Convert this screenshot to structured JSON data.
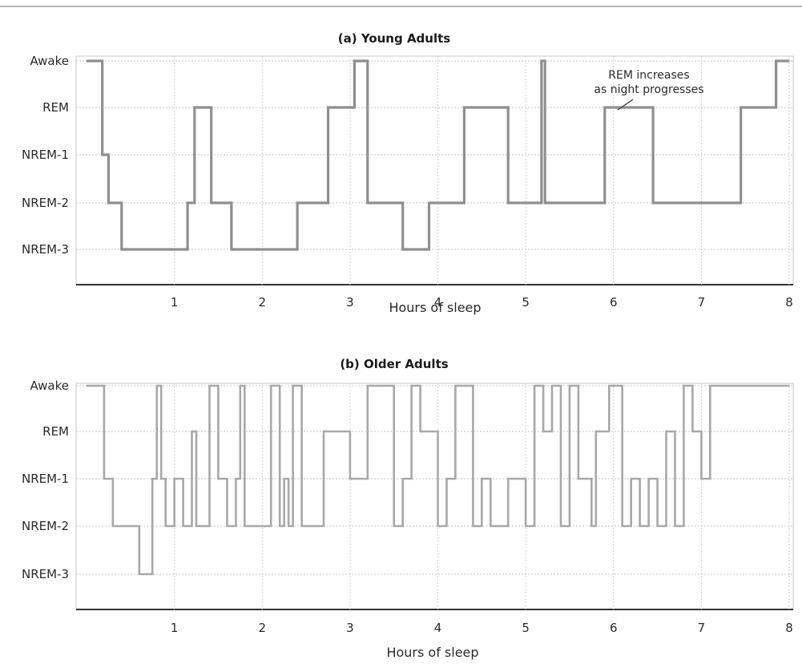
{
  "chart_data": [
    {
      "type": "line",
      "step": true,
      "title": "(a) Young Adults",
      "xlabel": "Hours of sleep",
      "ylabel": "",
      "xlim": [
        0,
        8
      ],
      "x_ticks": [
        1,
        2,
        3,
        4,
        5,
        6,
        7,
        8
      ],
      "y_categories": [
        "NREM-3",
        "NREM-2",
        "NREM-1",
        "REM",
        "Awake"
      ],
      "grid": true,
      "color": "#8f8f8f",
      "annotation": {
        "lines": [
          "REM increases",
          "as night progresses"
        ],
        "points_to": {
          "x": 6.15,
          "stage": "REM"
        }
      },
      "series": [
        {
          "x": [
            0,
            0.18,
            0.25,
            0.4,
            1.15,
            1.23,
            1.42,
            1.6,
            1.65,
            2.1,
            2.4,
            2.75,
            3.05,
            3.1,
            3.2,
            3.4,
            3.6,
            3.9,
            4.05,
            4.3,
            4.8,
            5.18,
            5.22,
            5.26,
            5.9,
            6.45,
            7.45,
            7.7,
            7.85,
            8.0
          ],
          "stage": [
            "Awake",
            "NREM-1",
            "NREM-2",
            "NREM-3",
            "NREM-2",
            "REM",
            "NREM-2",
            "NREM-2",
            "NREM-3",
            "NREM-3",
            "NREM-2",
            "REM",
            "Awake",
            "Awake",
            "NREM-2",
            "NREM-2",
            "NREM-3",
            "NREM-2",
            "NREM-2",
            "REM",
            "NREM-2",
            "Awake",
            "NREM-2",
            "NREM-2",
            "REM",
            "NREM-2",
            "REM",
            "REM",
            "Awake",
            "Awake"
          ]
        }
      ]
    },
    {
      "type": "line",
      "step": true,
      "title": "(b) Older Adults",
      "xlabel": "Hours of sleep",
      "ylabel": "",
      "xlim": [
        0,
        8
      ],
      "x_ticks": [
        1,
        2,
        3,
        4,
        5,
        6,
        7,
        8
      ],
      "y_categories": [
        "NREM-3",
        "NREM-2",
        "NREM-1",
        "REM",
        "Awake"
      ],
      "grid": true,
      "color": "#a8a8a8",
      "series": [
        {
          "x": [
            0,
            0.2,
            0.3,
            0.6,
            0.75,
            0.8,
            0.85,
            0.9,
            1.0,
            1.1,
            1.2,
            1.25,
            1.4,
            1.5,
            1.6,
            1.7,
            1.75,
            1.8,
            2.1,
            2.2,
            2.25,
            2.3,
            2.35,
            2.45,
            2.7,
            2.9,
            3.0,
            3.2,
            3.5,
            3.6,
            3.7,
            3.8,
            4.0,
            4.1,
            4.2,
            4.4,
            4.5,
            4.6,
            4.8,
            5.0,
            5.1,
            5.2,
            5.3,
            5.4,
            5.5,
            5.6,
            5.75,
            5.8,
            5.95,
            6.1,
            6.2,
            6.3,
            6.4,
            6.5,
            6.6,
            6.7,
            6.8,
            6.9,
            7.0,
            7.1,
            8.0
          ],
          "stage": [
            "Awake",
            "NREM-1",
            "NREM-2",
            "NREM-3",
            "NREM-1",
            "Awake",
            "NREM-1",
            "NREM-2",
            "NREM-1",
            "NREM-2",
            "REM",
            "NREM-2",
            "Awake",
            "NREM-1",
            "NREM-2",
            "NREM-1",
            "Awake",
            "NREM-2",
            "Awake",
            "NREM-2",
            "NREM-1",
            "NREM-2",
            "Awake",
            "NREM-2",
            "REM",
            "REM",
            "NREM-1",
            "Awake",
            "NREM-2",
            "NREM-1",
            "Awake",
            "REM",
            "NREM-2",
            "NREM-1",
            "Awake",
            "NREM-2",
            "NREM-1",
            "NREM-2",
            "NREM-1",
            "NREM-2",
            "Awake",
            "REM",
            "Awake",
            "NREM-2",
            "Awake",
            "NREM-1",
            "NREM-2",
            "REM",
            "Awake",
            "NREM-2",
            "NREM-1",
            "NREM-2",
            "NREM-1",
            "NREM-2",
            "REM",
            "NREM-2",
            "Awake",
            "REM",
            "NREM-1",
            "Awake",
            "Awake"
          ]
        }
      ]
    }
  ]
}
